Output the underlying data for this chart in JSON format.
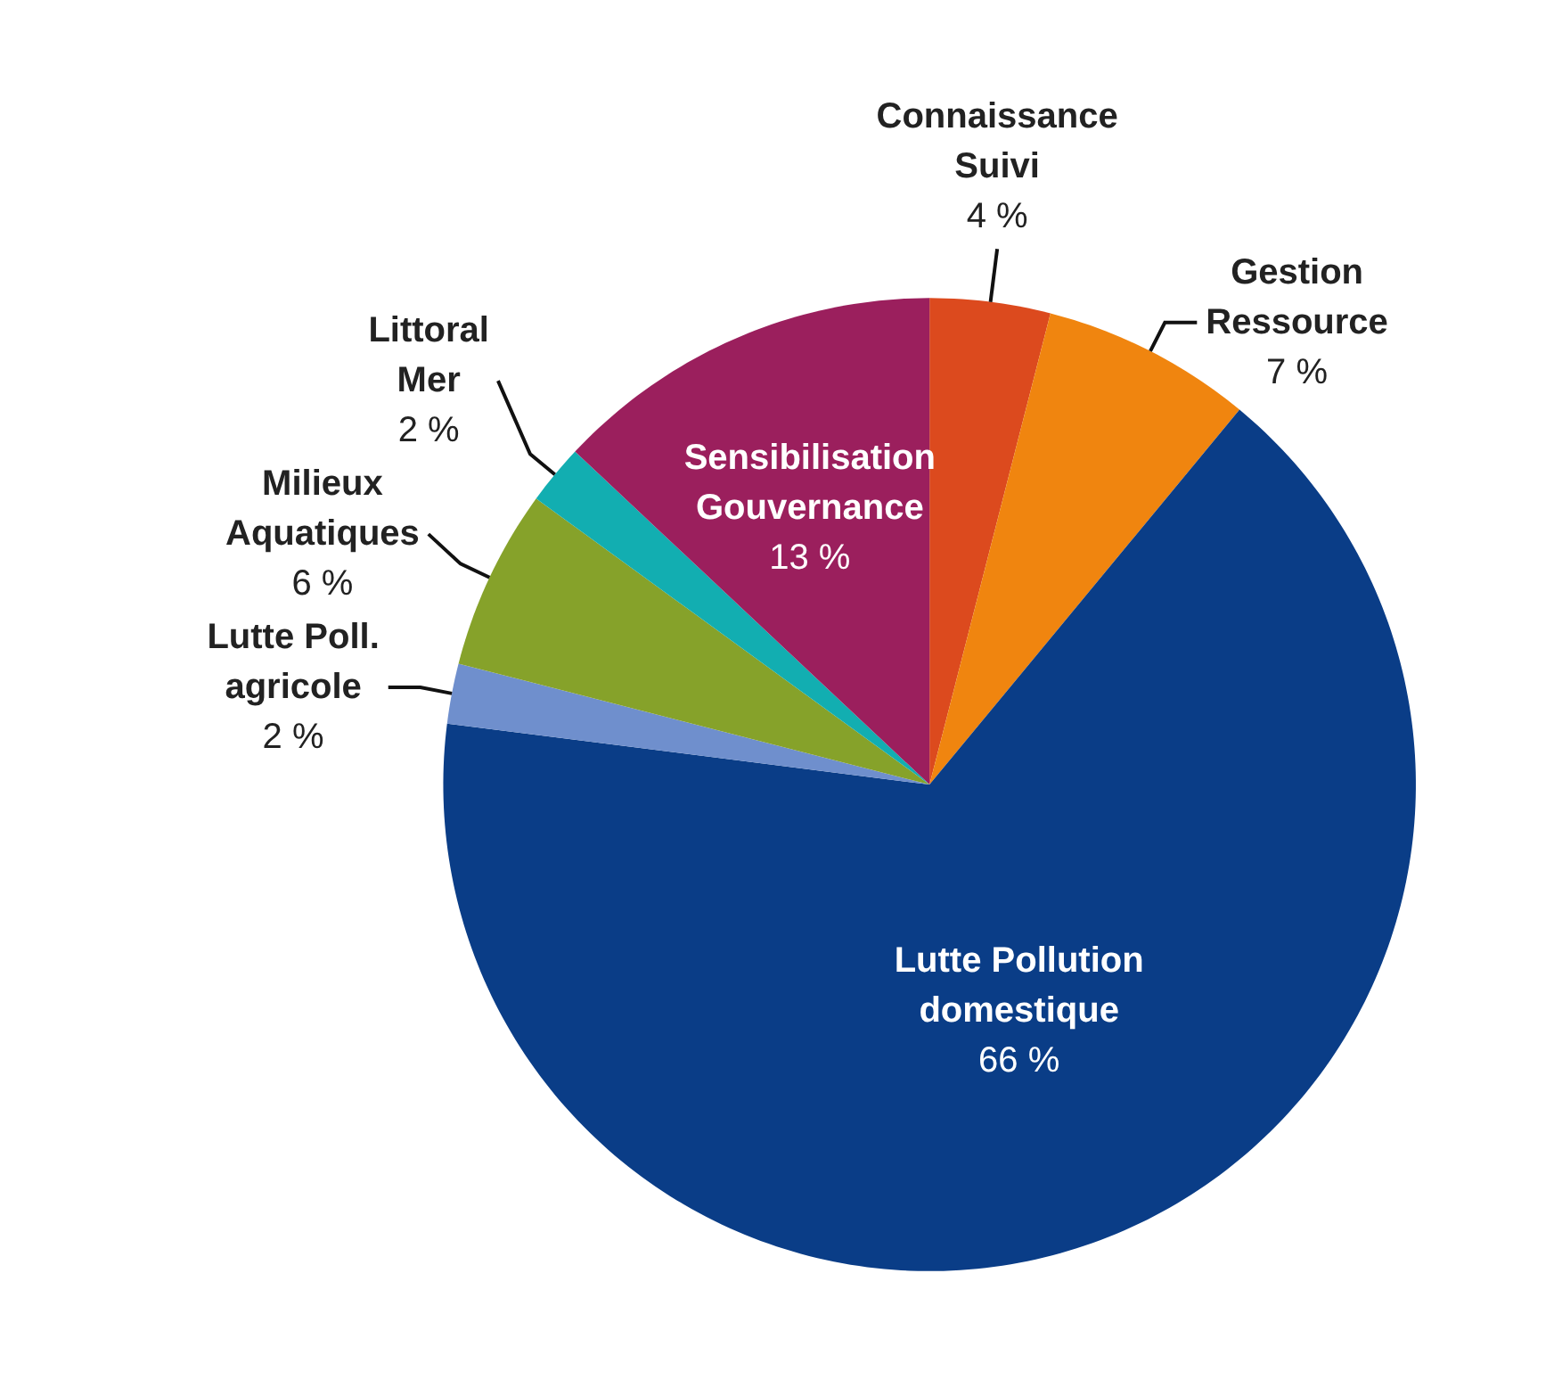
{
  "chart_data": {
    "type": "pie",
    "categories": [
      "Connaissance Suivi",
      "Gestion Ressource",
      "Lutte Pollution domestique",
      "Lutte Poll. agricole",
      "Milieux Aquatiques",
      "Littoral Mer",
      "Sensibilisation Gouvernance"
    ],
    "values": [
      4,
      7,
      66,
      2,
      6,
      2,
      13
    ],
    "value_labels": [
      "4 %",
      "7 %",
      "66 %",
      "2 %",
      "6 %",
      "2 %",
      "13 %"
    ],
    "colors": [
      "#dc4a1e",
      "#f0850f",
      "#0a3d87",
      "#6f8fcd",
      "#86a22a",
      "#12aeb1",
      "#9b1f5d"
    ]
  }
}
